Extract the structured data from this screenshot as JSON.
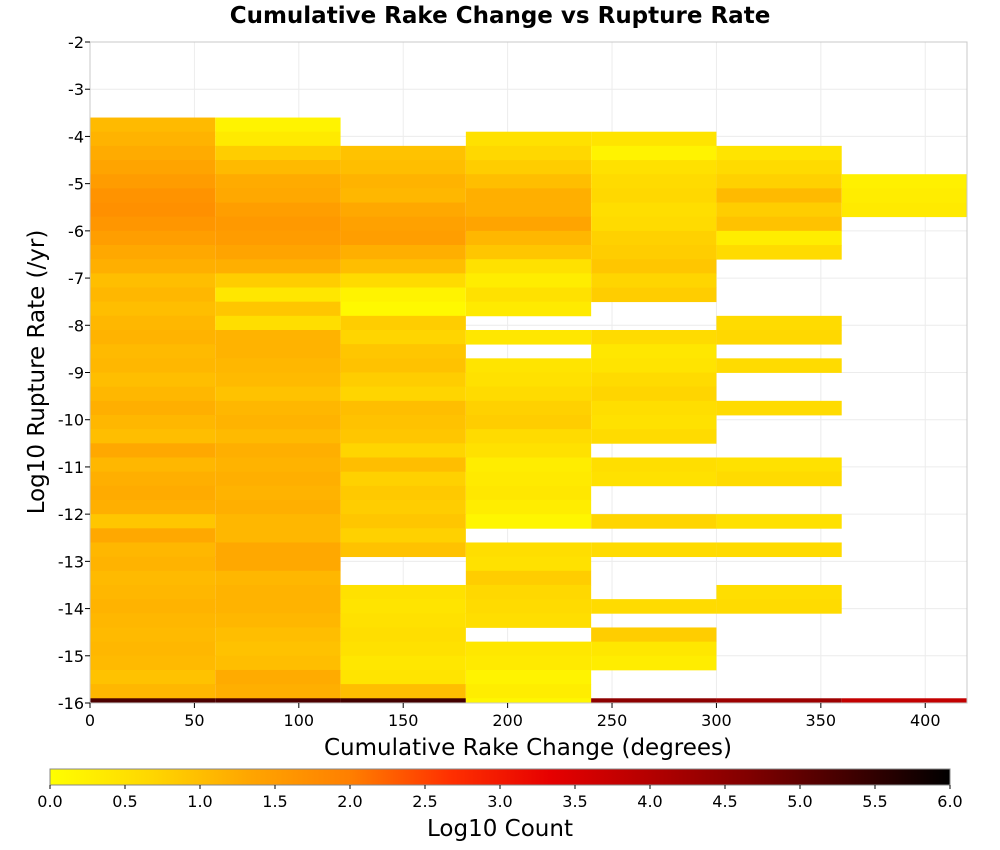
{
  "chart_data": {
    "type": "heatmap",
    "title": "Cumulative Rake Change vs Rupture Rate",
    "xlabel": "Cumulative Rake Change (degrees)",
    "ylabel": "Log10 Rupture Rate (/yr)",
    "xlim": [
      0,
      420
    ],
    "ylim": [
      -16,
      -2
    ],
    "x_ticks": [
      0,
      50,
      100,
      150,
      200,
      250,
      300,
      350,
      400
    ],
    "y_ticks": [
      -2,
      -3,
      -4,
      -5,
      -6,
      -7,
      -8,
      -9,
      -10,
      -11,
      -12,
      -13,
      -14,
      -15,
      -16
    ],
    "x_bin_width": 60,
    "y_bin_height": 0.3,
    "grid": true,
    "colorbar": {
      "label": "Log10 Count",
      "range": [
        0,
        6
      ],
      "ticks": [
        "0.0",
        "0.5",
        "1.0",
        "1.5",
        "2.0",
        "2.5",
        "3.0",
        "3.5",
        "4.0",
        "4.5",
        "5.0",
        "5.5",
        "6.0"
      ],
      "colormap": [
        "#ffff00",
        "#ffd700",
        "#ffa500",
        "#ff7f00",
        "#ff3000",
        "#e60000",
        "#b40000",
        "#800000",
        "#400000",
        "#000000"
      ],
      "placement": "bottom"
    },
    "columns": [
      {
        "x_start": 0,
        "cells": [
          {
            "y": -3.6,
            "v": 1.05
          },
          {
            "y": -3.9,
            "v": 1.15
          },
          {
            "y": -4.2,
            "v": 1.25
          },
          {
            "y": -4.5,
            "v": 1.35
          },
          {
            "y": -4.8,
            "v": 1.5
          },
          {
            "y": -5.1,
            "v": 1.65
          },
          {
            "y": -5.4,
            "v": 1.7
          },
          {
            "y": -5.7,
            "v": 1.6
          },
          {
            "y": -6.0,
            "v": 1.45
          },
          {
            "y": -6.3,
            "v": 1.3
          },
          {
            "y": -6.6,
            "v": 1.2
          },
          {
            "y": -6.9,
            "v": 1.0
          },
          {
            "y": -7.2,
            "v": 1.1
          },
          {
            "y": -7.5,
            "v": 1.0
          },
          {
            "y": -7.8,
            "v": 1.1
          },
          {
            "y": -8.1,
            "v": 1.15
          },
          {
            "y": -8.4,
            "v": 1.05
          },
          {
            "y": -8.7,
            "v": 1.1
          },
          {
            "y": -9.0,
            "v": 1.0
          },
          {
            "y": -9.3,
            "v": 1.1
          },
          {
            "y": -9.6,
            "v": 1.2
          },
          {
            "y": -9.9,
            "v": 1.1
          },
          {
            "y": -10.2,
            "v": 1.0
          },
          {
            "y": -10.5,
            "v": 1.3
          },
          {
            "y": -10.8,
            "v": 1.1
          },
          {
            "y": -11.1,
            "v": 1.2
          },
          {
            "y": -11.4,
            "v": 1.25
          },
          {
            "y": -11.7,
            "v": 1.2
          },
          {
            "y": -12.0,
            "v": 0.9
          },
          {
            "y": -12.3,
            "v": 1.3
          },
          {
            "y": -12.6,
            "v": 1.1
          },
          {
            "y": -12.9,
            "v": 1.15
          },
          {
            "y": -13.2,
            "v": 1.05
          },
          {
            "y": -13.5,
            "v": 1.1
          },
          {
            "y": -13.8,
            "v": 1.15
          },
          {
            "y": -14.1,
            "v": 1.1
          },
          {
            "y": -14.4,
            "v": 1.05
          },
          {
            "y": -14.7,
            "v": 1.1
          },
          {
            "y": -15.0,
            "v": 1.05
          },
          {
            "y": -15.3,
            "v": 0.95
          },
          {
            "y": -15.6,
            "v": 1.1
          },
          {
            "y": -15.9,
            "v": 5.2
          }
        ]
      },
      {
        "x_start": 60,
        "cells": [
          {
            "y": -3.6,
            "v": 0.2
          },
          {
            "y": -3.9,
            "v": 0.35
          },
          {
            "y": -4.2,
            "v": 0.8
          },
          {
            "y": -4.5,
            "v": 1.05
          },
          {
            "y": -4.8,
            "v": 1.25
          },
          {
            "y": -5.1,
            "v": 1.3
          },
          {
            "y": -5.4,
            "v": 1.45
          },
          {
            "y": -5.7,
            "v": 1.55
          },
          {
            "y": -6.0,
            "v": 1.5
          },
          {
            "y": -6.3,
            "v": 1.35
          },
          {
            "y": -6.6,
            "v": 1.2
          },
          {
            "y": -6.9,
            "v": 0.8
          },
          {
            "y": -7.2,
            "v": 0.4
          },
          {
            "y": -7.5,
            "v": 0.9
          },
          {
            "y": -7.8,
            "v": 0.55
          },
          {
            "y": -8.1,
            "v": 1.15
          },
          {
            "y": -8.4,
            "v": 1.15
          },
          {
            "y": -8.7,
            "v": 1.1
          },
          {
            "y": -9.0,
            "v": 1.05
          },
          {
            "y": -9.3,
            "v": 0.95
          },
          {
            "y": -9.6,
            "v": 1.1
          },
          {
            "y": -9.9,
            "v": 1.15
          },
          {
            "y": -10.2,
            "v": 1.05
          },
          {
            "y": -10.5,
            "v": 1.2
          },
          {
            "y": -10.8,
            "v": 1.15
          },
          {
            "y": -11.1,
            "v": 1.2
          },
          {
            "y": -11.4,
            "v": 1.15
          },
          {
            "y": -11.7,
            "v": 1.2
          },
          {
            "y": -12.0,
            "v": 1.1
          },
          {
            "y": -12.3,
            "v": 1.1
          },
          {
            "y": -12.6,
            "v": 1.3
          },
          {
            "y": -12.9,
            "v": 1.3
          },
          {
            "y": -13.2,
            "v": 1.1
          },
          {
            "y": -13.5,
            "v": 1.15
          },
          {
            "y": -13.8,
            "v": 1.15
          },
          {
            "y": -14.1,
            "v": 1.1
          },
          {
            "y": -14.4,
            "v": 1.0
          },
          {
            "y": -14.7,
            "v": 0.95
          },
          {
            "y": -15.0,
            "v": 1.0
          },
          {
            "y": -15.3,
            "v": 1.25
          },
          {
            "y": -15.6,
            "v": 1.2
          },
          {
            "y": -15.9,
            "v": 5.2
          }
        ]
      },
      {
        "x_start": 120,
        "cells": [
          {
            "y": -4.2,
            "v": 0.95
          },
          {
            "y": -4.5,
            "v": 1.0
          },
          {
            "y": -4.8,
            "v": 1.15
          },
          {
            "y": -5.1,
            "v": 1.1
          },
          {
            "y": -5.4,
            "v": 1.3
          },
          {
            "y": -5.7,
            "v": 1.4
          },
          {
            "y": -6.0,
            "v": 1.45
          },
          {
            "y": -6.3,
            "v": 1.2
          },
          {
            "y": -6.6,
            "v": 1.0
          },
          {
            "y": -6.9,
            "v": 0.6
          },
          {
            "y": -7.2,
            "v": 0.2
          },
          {
            "y": -7.5,
            "v": 0.1
          },
          {
            "y": -7.8,
            "v": 0.8
          },
          {
            "y": -8.1,
            "v": 0.7
          },
          {
            "y": -8.4,
            "v": 0.9
          },
          {
            "y": -8.7,
            "v": 0.95
          },
          {
            "y": -9.0,
            "v": 0.8
          },
          {
            "y": -9.3,
            "v": 0.7
          },
          {
            "y": -9.6,
            "v": 1.0
          },
          {
            "y": -9.9,
            "v": 0.95
          },
          {
            "y": -10.2,
            "v": 0.9
          },
          {
            "y": -10.5,
            "v": 0.7
          },
          {
            "y": -10.8,
            "v": 1.0
          },
          {
            "y": -11.1,
            "v": 0.75
          },
          {
            "y": -11.4,
            "v": 0.85
          },
          {
            "y": -11.7,
            "v": 0.8
          },
          {
            "y": -12.0,
            "v": 0.9
          },
          {
            "y": -12.3,
            "v": 0.75
          },
          {
            "y": -12.6,
            "v": 0.95
          },
          {
            "y": -13.5,
            "v": 0.5
          },
          {
            "y": -13.8,
            "v": 0.45
          },
          {
            "y": -14.1,
            "v": 0.5
          },
          {
            "y": -14.4,
            "v": 0.55
          },
          {
            "y": -14.7,
            "v": 0.5
          },
          {
            "y": -15.0,
            "v": 0.4
          },
          {
            "y": -15.3,
            "v": 0.45
          },
          {
            "y": -15.6,
            "v": 1.0
          },
          {
            "y": -15.9,
            "v": 5.3
          }
        ]
      },
      {
        "x_start": 180,
        "cells": [
          {
            "y": -3.9,
            "v": 0.5
          },
          {
            "y": -4.2,
            "v": 0.65
          },
          {
            "y": -4.5,
            "v": 0.8
          },
          {
            "y": -4.8,
            "v": 1.0
          },
          {
            "y": -5.1,
            "v": 1.2
          },
          {
            "y": -5.4,
            "v": 1.2
          },
          {
            "y": -5.7,
            "v": 1.35
          },
          {
            "y": -6.0,
            "v": 1.1
          },
          {
            "y": -6.3,
            "v": 0.9
          },
          {
            "y": -6.6,
            "v": 0.5
          },
          {
            "y": -6.9,
            "v": 0.3
          },
          {
            "y": -7.2,
            "v": 0.5
          },
          {
            "y": -7.5,
            "v": 0.35
          },
          {
            "y": -8.1,
            "v": 0.4
          },
          {
            "y": -8.7,
            "v": 0.45
          },
          {
            "y": -9.0,
            "v": 0.5
          },
          {
            "y": -9.3,
            "v": 0.6
          },
          {
            "y": -9.6,
            "v": 0.75
          },
          {
            "y": -9.9,
            "v": 0.8
          },
          {
            "y": -10.2,
            "v": 0.6
          },
          {
            "y": -10.5,
            "v": 0.5
          },
          {
            "y": -10.8,
            "v": 0.3
          },
          {
            "y": -11.1,
            "v": 0.35
          },
          {
            "y": -11.4,
            "v": 0.4
          },
          {
            "y": -11.7,
            "v": 0.3
          },
          {
            "y": -12.0,
            "v": 0.15
          },
          {
            "y": -12.6,
            "v": 0.55
          },
          {
            "y": -12.9,
            "v": 0.5
          },
          {
            "y": -13.2,
            "v": 0.8
          },
          {
            "y": -13.5,
            "v": 0.65
          },
          {
            "y": -13.8,
            "v": 0.6
          },
          {
            "y": -14.1,
            "v": 0.55
          },
          {
            "y": -14.7,
            "v": 0.4
          },
          {
            "y": -15.0,
            "v": 0.35
          },
          {
            "y": -15.3,
            "v": 0.2
          },
          {
            "y": -15.6,
            "v": 0.3
          },
          {
            "y": -15.9,
            "v": 0.15
          }
        ]
      },
      {
        "x_start": 240,
        "cells": [
          {
            "y": -3.9,
            "v": 0.45
          },
          {
            "y": -4.2,
            "v": 0.2
          },
          {
            "y": -4.5,
            "v": 0.5
          },
          {
            "y": -4.8,
            "v": 0.6
          },
          {
            "y": -5.1,
            "v": 0.65
          },
          {
            "y": -5.4,
            "v": 0.55
          },
          {
            "y": -5.7,
            "v": 0.6
          },
          {
            "y": -6.0,
            "v": 0.75
          },
          {
            "y": -6.3,
            "v": 0.8
          },
          {
            "y": -6.6,
            "v": 0.9
          },
          {
            "y": -6.9,
            "v": 0.7
          },
          {
            "y": -7.2,
            "v": 0.8
          },
          {
            "y": -8.1,
            "v": 0.6
          },
          {
            "y": -8.4,
            "v": 0.4
          },
          {
            "y": -8.7,
            "v": 0.45
          },
          {
            "y": -9.0,
            "v": 0.6
          },
          {
            "y": -9.3,
            "v": 0.7
          },
          {
            "y": -9.6,
            "v": 0.55
          },
          {
            "y": -9.9,
            "v": 0.5
          },
          {
            "y": -10.2,
            "v": 0.6
          },
          {
            "y": -10.8,
            "v": 0.55
          },
          {
            "y": -11.1,
            "v": 0.5
          },
          {
            "y": -12.0,
            "v": 0.7
          },
          {
            "y": -12.6,
            "v": 0.6
          },
          {
            "y": -13.8,
            "v": 0.6
          },
          {
            "y": -14.4,
            "v": 0.8
          },
          {
            "y": -14.7,
            "v": 0.4
          },
          {
            "y": -15.0,
            "v": 0.3
          },
          {
            "y": -15.9,
            "v": 4.5
          }
        ]
      },
      {
        "x_start": 300,
        "cells": [
          {
            "y": -4.2,
            "v": 0.45
          },
          {
            "y": -4.5,
            "v": 0.6
          },
          {
            "y": -4.8,
            "v": 0.75
          },
          {
            "y": -5.1,
            "v": 1.05
          },
          {
            "y": -5.4,
            "v": 0.8
          },
          {
            "y": -5.7,
            "v": 0.95
          },
          {
            "y": -6.0,
            "v": 0.3
          },
          {
            "y": -6.3,
            "v": 0.6
          },
          {
            "y": -7.8,
            "v": 0.6
          },
          {
            "y": -8.1,
            "v": 0.65
          },
          {
            "y": -8.7,
            "v": 0.6
          },
          {
            "y": -9.6,
            "v": 0.6
          },
          {
            "y": -10.8,
            "v": 0.5
          },
          {
            "y": -11.1,
            "v": 0.6
          },
          {
            "y": -12.0,
            "v": 0.5
          },
          {
            "y": -12.6,
            "v": 0.6
          },
          {
            "y": -13.5,
            "v": 0.55
          },
          {
            "y": -13.8,
            "v": 0.6
          },
          {
            "y": -15.9,
            "v": 4.3
          }
        ]
      },
      {
        "x_start": 360,
        "cells": [
          {
            "y": -4.8,
            "v": 0.25
          },
          {
            "y": -5.1,
            "v": 0.3
          },
          {
            "y": -5.4,
            "v": 0.35
          },
          {
            "y": -15.9,
            "v": 3.8
          }
        ]
      }
    ]
  }
}
